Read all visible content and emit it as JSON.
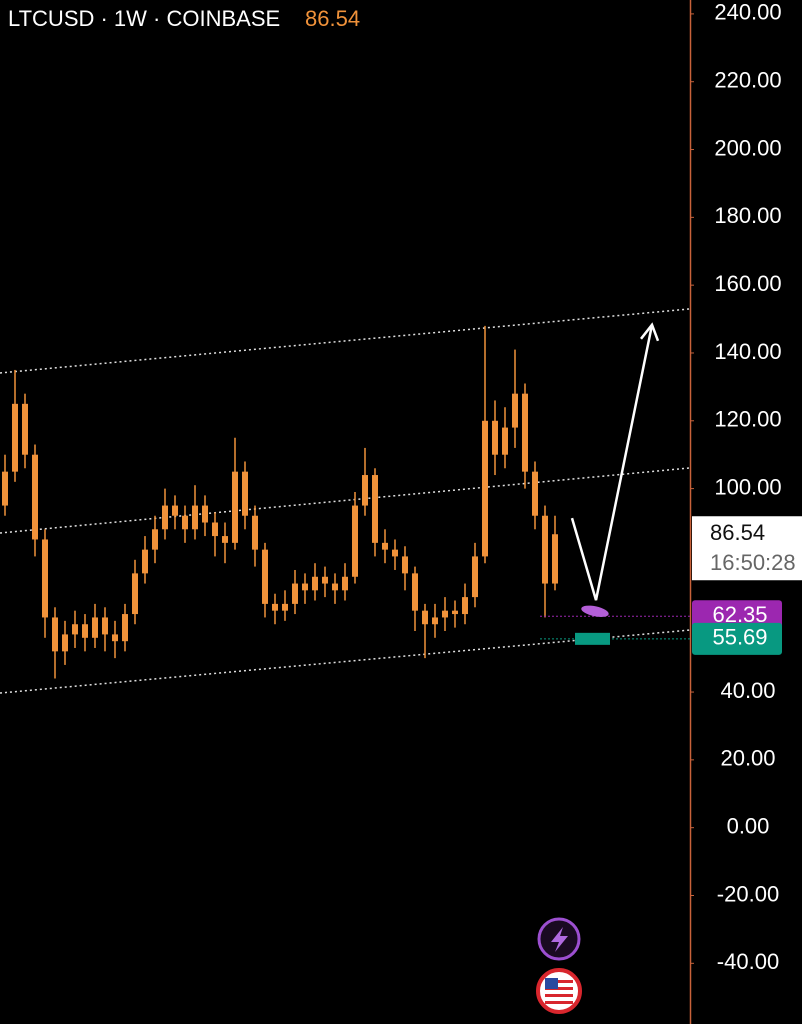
{
  "chart_data": {
    "type": "candlestick",
    "title": "LTCUSD · 1W · COINBASE",
    "last_price": 86.54,
    "countdown": "16:50:28",
    "color": "#f0923a",
    "categories": [
      null,
      null,
      null,
      null,
      null,
      null,
      null,
      null,
      null,
      null,
      null,
      null,
      null,
      null,
      null,
      null,
      null,
      null,
      null,
      null,
      null,
      null,
      null,
      null,
      null,
      null,
      null,
      null,
      null,
      null,
      null,
      null,
      null,
      null,
      null,
      null,
      null,
      null,
      null,
      null,
      null,
      null,
      null,
      null,
      null,
      null,
      null,
      null,
      null,
      null,
      null,
      null,
      null,
      null,
      null,
      null
    ],
    "open": [
      95,
      105,
      125,
      110,
      85,
      62,
      52,
      57,
      60,
      56,
      62,
      57,
      55,
      63,
      75,
      82,
      88,
      95,
      92,
      88,
      95,
      90,
      86,
      84,
      105,
      92,
      82,
      66,
      64,
      66,
      72,
      70,
      74,
      72,
      70,
      74,
      95,
      104,
      84,
      82,
      80,
      75,
      64,
      60,
      62,
      64,
      63,
      68,
      80,
      120,
      110,
      118,
      128,
      105,
      92,
      72
    ],
    "high": [
      110,
      135,
      128,
      113,
      88,
      65,
      61,
      64,
      63,
      66,
      65,
      61,
      66,
      79,
      86,
      92,
      100,
      98,
      95,
      101,
      98,
      93,
      90,
      115,
      108,
      95,
      84,
      69,
      70,
      76,
      75,
      78,
      77,
      75,
      78,
      99,
      112,
      106,
      88,
      85,
      83,
      77,
      66,
      66,
      68,
      67,
      72,
      84,
      148,
      126,
      124,
      141,
      131,
      108,
      95,
      92
    ],
    "low": [
      92,
      102,
      106,
      80,
      56,
      44,
      48,
      53,
      52,
      53,
      52,
      50,
      52,
      60,
      72,
      78,
      85,
      88,
      84,
      85,
      86,
      80,
      78,
      82,
      88,
      77,
      62,
      60,
      61,
      63,
      66,
      67,
      68,
      66,
      67,
      72,
      92,
      80,
      78,
      76,
      70,
      58,
      50,
      56,
      58,
      59,
      60,
      65,
      78,
      104,
      106,
      112,
      100,
      88,
      62,
      70
    ],
    "close": [
      105,
      125,
      110,
      85,
      62,
      52,
      57,
      60,
      56,
      62,
      57,
      55,
      63,
      75,
      82,
      88,
      95,
      92,
      88,
      95,
      90,
      86,
      84,
      105,
      92,
      82,
      66,
      64,
      66,
      72,
      70,
      74,
      72,
      70,
      74,
      95,
      104,
      84,
      82,
      80,
      75,
      64,
      60,
      62,
      64,
      63,
      68,
      80,
      120,
      110,
      118,
      128,
      105,
      92,
      72,
      86.54
    ],
    "ylim": [
      -57.9,
      244.1
    ],
    "yticks": [
      {
        "value": 240,
        "label": "240.00"
      },
      {
        "value": 220,
        "label": "220.00"
      },
      {
        "value": 200,
        "label": "200.00"
      },
      {
        "value": 180,
        "label": "180.00"
      },
      {
        "value": 160,
        "label": "160.00"
      },
      {
        "value": 140,
        "label": "140.00"
      },
      {
        "value": 120,
        "label": "120.00"
      },
      {
        "value": 100,
        "label": "100.00"
      },
      {
        "value": 40,
        "label": "40.00"
      },
      {
        "value": 20,
        "label": "20.00"
      },
      {
        "value": 0,
        "label": "0.00"
      },
      {
        "value": -20,
        "label": "-20.00"
      },
      {
        "value": -40,
        "label": "-40.00"
      }
    ],
    "price_labels": [
      {
        "value": 62.35,
        "color": "#9c27b0"
      },
      {
        "value": 55.69,
        "color": "#089981"
      }
    ],
    "trend_lines": [
      {
        "values": [
          134.1,
          153
        ]
      },
      {
        "values": [
          86.9,
          106.1
        ]
      },
      {
        "values": [
          39.7,
          58.3
        ]
      }
    ],
    "arrow": {
      "values": [
        91.3,
        67.1,
        148.3
      ]
    }
  }
}
